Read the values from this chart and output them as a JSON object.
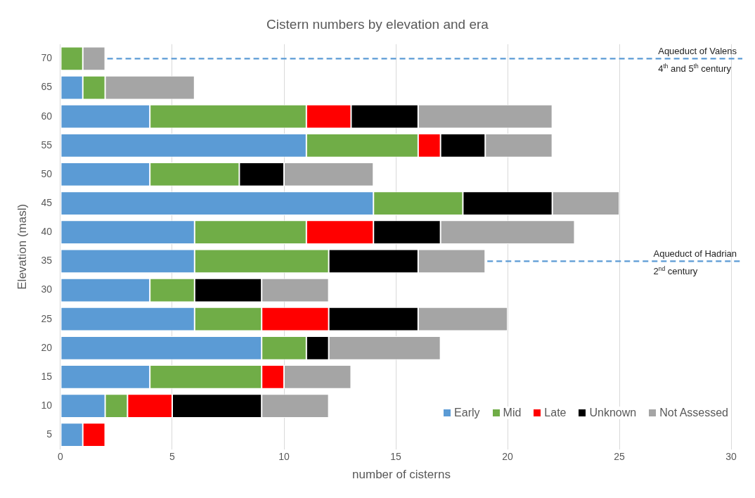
{
  "chart_data": {
    "type": "bar",
    "orientation": "horizontal",
    "stacked": true,
    "title": "Cistern numbers by elevation and era",
    "xlabel": "number of cisterns",
    "ylabel": "Elevation (masl)",
    "categories": [
      "70",
      "65",
      "60",
      "55",
      "50",
      "45",
      "40",
      "35",
      "30",
      "25",
      "20",
      "15",
      "10",
      "5"
    ],
    "series": [
      {
        "name": "Early",
        "color": "#5b9bd5",
        "values": [
          0,
          1,
          4,
          11,
          4,
          14,
          6,
          6,
          4,
          6,
          9,
          4,
          2,
          1
        ]
      },
      {
        "name": "Mid",
        "color": "#70ad47",
        "values": [
          1,
          1,
          7,
          5,
          4,
          4,
          5,
          6,
          2,
          3,
          2,
          5,
          1,
          0
        ]
      },
      {
        "name": "Late",
        "color": "#ff0000",
        "values": [
          0,
          0,
          2,
          1,
          0,
          0,
          3,
          0,
          0,
          3,
          0,
          1,
          2,
          1
        ]
      },
      {
        "name": "Unknown",
        "color": "#000000",
        "values": [
          0,
          0,
          3,
          2,
          2,
          4,
          3,
          4,
          3,
          4,
          1,
          0,
          4,
          0
        ]
      },
      {
        "name": "Not Assessed",
        "color": "#a5a5a5",
        "values": [
          1,
          4,
          6,
          3,
          4,
          3,
          6,
          3,
          3,
          4,
          5,
          3,
          3,
          0
        ]
      }
    ],
    "xlim": [
      0,
      30.5
    ],
    "xticks": [
      0,
      5,
      10,
      15,
      20,
      25,
      30
    ],
    "grid": "x",
    "legend": "bottom right",
    "ref_lines": [
      {
        "axis": "y",
        "value": "70",
        "label": "Aqueduct of Valens\n4$^{th}$ and 5$^{th}$ century",
        "color": "#5b9bd5",
        "line_style": "dashed"
      },
      {
        "axis": "y",
        "value": "35",
        "label": "Aqueduct of Hadrian\n2$^{nd}$ century",
        "color": "#5b9bd5",
        "line_style": "dashed"
      }
    ]
  }
}
